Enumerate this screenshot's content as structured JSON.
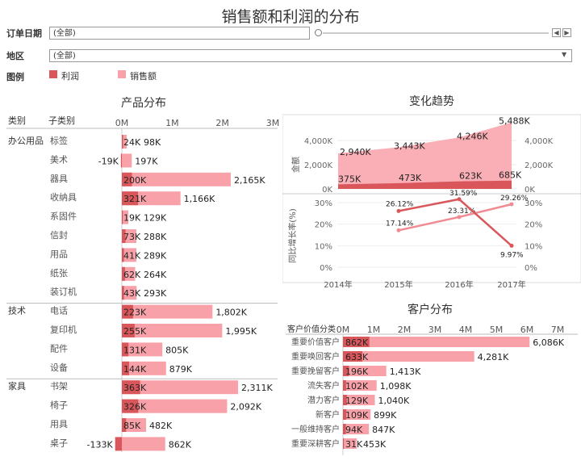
{
  "title": "销售额和利润的分布",
  "filters": {
    "date_label": "订单日期",
    "date_value": "(全部)",
    "region_label": "地区",
    "region_value": "(全部)",
    "legend_label": "图例",
    "legend_items": [
      "利润",
      "销售额"
    ]
  },
  "colors": {
    "profit": "#d9575b",
    "sales": "#f8a1a8",
    "profit_light": "#f08b92"
  },
  "product": {
    "title": "产品分布",
    "col_category": "类别",
    "col_subcategory": "子类别",
    "axis_ticks": [
      "0M",
      "1M",
      "2M",
      "3M"
    ]
  },
  "trend": {
    "title": "变化趋势",
    "y_top_label": "金额",
    "y_bottom_label": "同比增长率(%)",
    "top_ticks": [
      "4,000K",
      "2,000K",
      "0K"
    ],
    "bottom_ticks": [
      "30%",
      "20%",
      "10%",
      "0%"
    ],
    "x_labels": [
      "2014年",
      "2015年",
      "2016年",
      "2017年"
    ]
  },
  "customer": {
    "title": "客户分布",
    "col_label": "客户价值分类",
    "axis_ticks": [
      "0M",
      "1M",
      "2M",
      "3M",
      "4M",
      "5M",
      "6M",
      "7M"
    ]
  },
  "chart_data": [
    {
      "type": "bar",
      "title": "产品分布",
      "groups": [
        {
          "category": "办公用品",
          "rows": [
            {
              "sub": "标签",
              "profit": 24,
              "sales": 98,
              "profit_label": "24K",
              "sales_label": "98K"
            },
            {
              "sub": "美术",
              "profit": -19,
              "sales": 197,
              "profit_label": "-19K",
              "sales_label": "197K"
            },
            {
              "sub": "器具",
              "profit": 200,
              "sales": 2165,
              "profit_label": "200K",
              "sales_label": "2,165K"
            },
            {
              "sub": "收纳具",
              "profit": 321,
              "sales": 1166,
              "profit_label": "321K",
              "sales_label": "1,166K"
            },
            {
              "sub": "系固件",
              "profit": 19,
              "sales": 129,
              "profit_label": "19K",
              "sales_label": "129K"
            },
            {
              "sub": "信封",
              "profit": 73,
              "sales": 288,
              "profit_label": "73K",
              "sales_label": "288K"
            },
            {
              "sub": "用品",
              "profit": 41,
              "sales": 289,
              "profit_label": "41K",
              "sales_label": "289K"
            },
            {
              "sub": "纸张",
              "profit": 62,
              "sales": 264,
              "profit_label": "62K",
              "sales_label": "264K"
            },
            {
              "sub": "装订机",
              "profit": 43,
              "sales": 293,
              "profit_label": "43K",
              "sales_label": "293K"
            }
          ]
        },
        {
          "category": "技术",
          "rows": [
            {
              "sub": "电话",
              "profit": 223,
              "sales": 1802,
              "profit_label": "223K",
              "sales_label": "1,802K"
            },
            {
              "sub": "复印机",
              "profit": 255,
              "sales": 1995,
              "profit_label": "255K",
              "sales_label": "1,995K"
            },
            {
              "sub": "配件",
              "profit": 131,
              "sales": 805,
              "profit_label": "131K",
              "sales_label": "805K"
            },
            {
              "sub": "设备",
              "profit": 144,
              "sales": 879,
              "profit_label": "144K",
              "sales_label": "879K"
            }
          ]
        },
        {
          "category": "家具",
          "rows": [
            {
              "sub": "书架",
              "profit": 363,
              "sales": 2311,
              "profit_label": "363K",
              "sales_label": "2,311K"
            },
            {
              "sub": "椅子",
              "profit": 326,
              "sales": 2092,
              "profit_label": "326K",
              "sales_label": "2,092K"
            },
            {
              "sub": "用具",
              "profit": 85,
              "sales": 482,
              "profit_label": "85K",
              "sales_label": "482K"
            },
            {
              "sub": "桌子",
              "profit": -133,
              "sales": 862,
              "profit_label": "-133K",
              "sales_label": "862K"
            }
          ]
        }
      ],
      "unit": "K",
      "xlim": [
        0,
        3000
      ]
    },
    {
      "type": "area",
      "title": "变化趋势",
      "x": [
        "2014年",
        "2015年",
        "2016年",
        "2017年"
      ],
      "ylabel": "金额",
      "ylim": [
        0,
        5600
      ],
      "series": [
        {
          "values": [
            2940,
            3443,
            4246,
            5488
          ],
          "labels": [
            "2,940K",
            "3,443K",
            "4,246K",
            "5,488K"
          ]
        },
        {
          "values": [
            375,
            473,
            623,
            685
          ],
          "labels": [
            "375K",
            "473K",
            "623K",
            "685K"
          ]
        }
      ]
    },
    {
      "type": "line",
      "x": [
        "2014年",
        "2015年",
        "2016年",
        "2017年"
      ],
      "ylabel": "同比增长率(%)",
      "ylim": [
        0,
        32
      ],
      "series": [
        {
          "values": [
            null,
            17.14,
            23.31,
            29.26
          ],
          "labels": [
            "",
            "17.14%",
            "23.31%",
            "29.26%"
          ]
        },
        {
          "values": [
            null,
            26.12,
            31.59,
            9.97
          ],
          "labels": [
            "",
            "26.12%",
            "31.59%",
            "9.97%"
          ]
        }
      ]
    },
    {
      "type": "bar",
      "title": "客户分布",
      "rows": [
        {
          "seg": "重要价值客户",
          "profit": 862,
          "sales": 6086,
          "profit_label": "862K",
          "sales_label": "6,086K"
        },
        {
          "seg": "重要唤回客户",
          "profit": 633,
          "sales": 4281,
          "profit_label": "633K",
          "sales_label": "4,281K"
        },
        {
          "seg": "重要挽留客户",
          "profit": 196,
          "sales": 1413,
          "profit_label": "196K",
          "sales_label": "1,413K"
        },
        {
          "seg": "流失客户",
          "profit": 102,
          "sales": 1098,
          "profit_label": "102K",
          "sales_label": "1,098K"
        },
        {
          "seg": "潜力客户",
          "profit": 129,
          "sales": 1040,
          "profit_label": "129K",
          "sales_label": "1,040K"
        },
        {
          "seg": "新客户",
          "profit": 109,
          "sales": 899,
          "profit_label": "109K",
          "sales_label": "899K"
        },
        {
          "seg": "一般维持客户",
          "profit": 94,
          "sales": 847,
          "profit_label": "94K",
          "sales_label": "847K"
        },
        {
          "seg": "重要深耕客户",
          "profit": 31,
          "sales": 453,
          "profit_label": "31K",
          "sales_label": "453K"
        }
      ],
      "xlim": [
        0,
        7000
      ]
    }
  ]
}
